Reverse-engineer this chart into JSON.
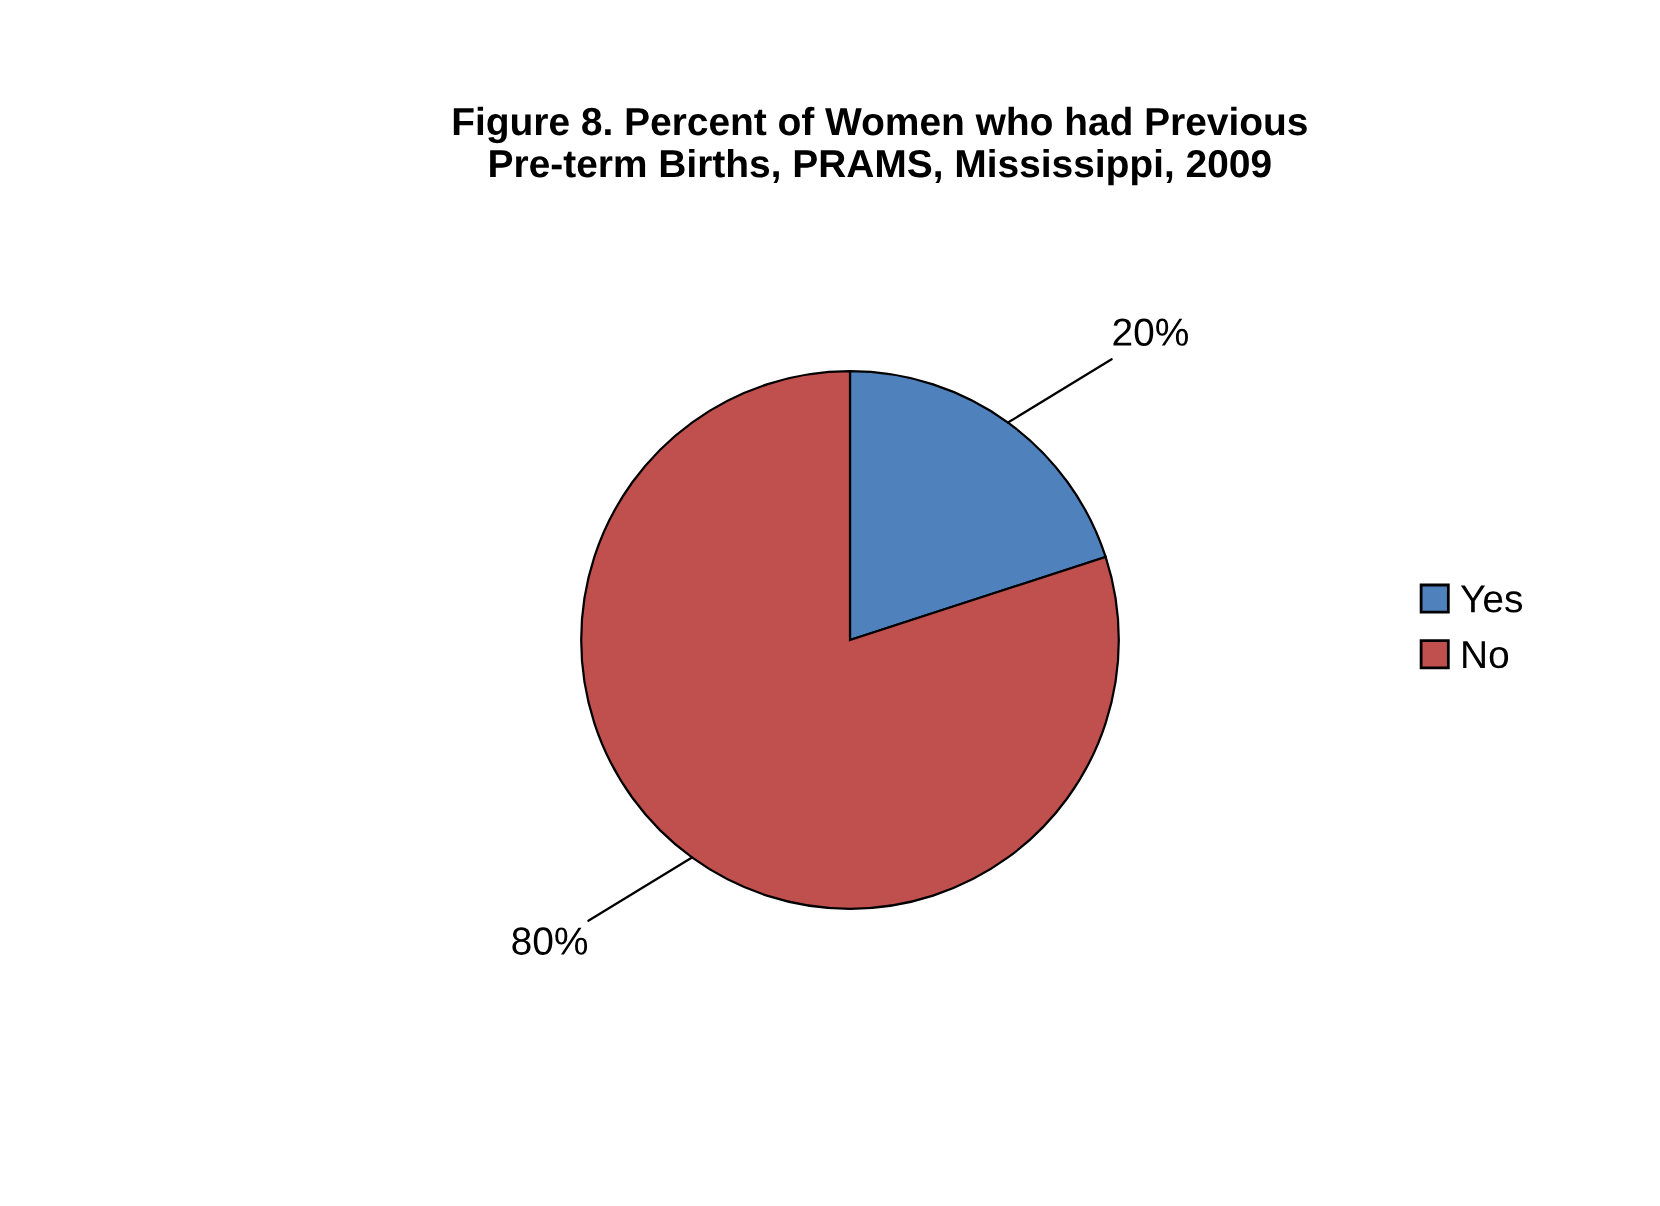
{
  "chart_data": {
    "type": "pie",
    "title": "Figure 8. Percent of Women who had Previous\nPre-term Births, PRAMS, Mississippi, 2009",
    "categories": [
      "Yes",
      "No"
    ],
    "values": [
      20,
      80
    ],
    "colors": [
      "#4f81bd",
      "#c0504d"
    ],
    "value_labels": [
      "20%",
      "80%"
    ],
    "legend": "right"
  }
}
